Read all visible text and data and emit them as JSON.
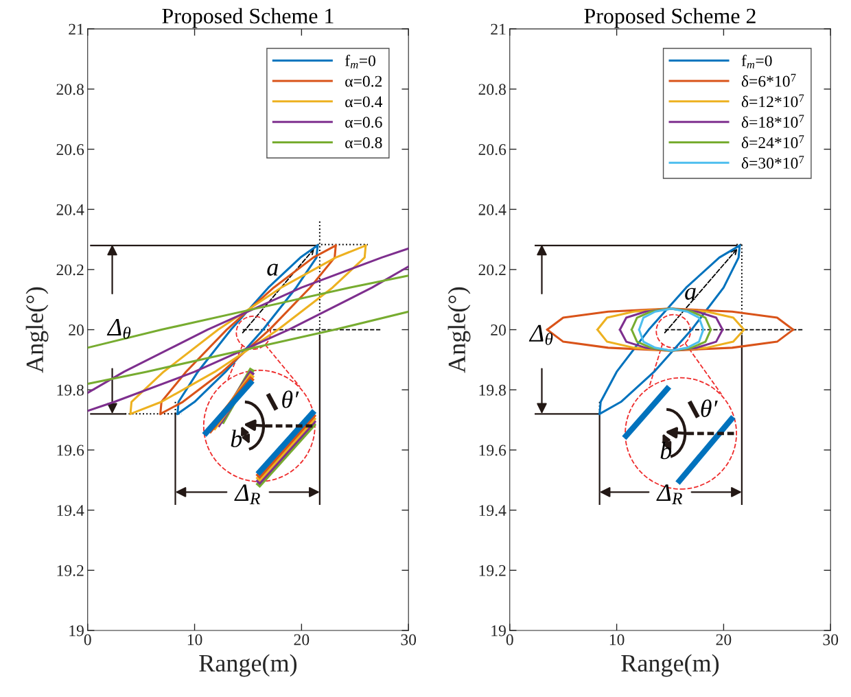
{
  "chart_data": [
    {
      "type": "line",
      "title": "Proposed Scheme 1",
      "xlabel": "Range(m)",
      "ylabel": "Angle(°)",
      "xlim": [
        0,
        30
      ],
      "ylim": [
        19,
        21
      ],
      "xticks": [
        0,
        10,
        20,
        30
      ],
      "yticks": [
        19,
        19.2,
        19.4,
        19.6,
        19.8,
        20,
        20.2,
        20.4,
        20.6,
        20.8,
        21
      ],
      "legend": "top right",
      "series": [
        {
          "name": "f$_{m}$=0",
          "color": "#0072bd",
          "x": [
            8.4,
            8.5,
            10.3,
            13.4,
            16.9,
            19.9,
            21.5,
            null,
            8.4,
            10.0,
            12.9,
            16.4,
            19.5,
            21.4,
            21.5
          ],
          "values": [
            19.72,
            19.76,
            19.86,
            20.0,
            20.14,
            20.24,
            20.28,
            null,
            19.72,
            19.76,
            19.86,
            20.0,
            20.14,
            20.24,
            20.28
          ]
        },
        {
          "name": "α=0.2",
          "color": "#d95319",
          "x": [
            6.8,
            6.9,
            9.2,
            13.0,
            17.4,
            21.1,
            23.2,
            null,
            6.8,
            8.9,
            12.6,
            17.0,
            20.8,
            23.1,
            23.2
          ],
          "values": [
            19.72,
            19.76,
            19.86,
            20.0,
            20.14,
            20.24,
            20.28,
            null,
            19.72,
            19.76,
            19.86,
            20.0,
            20.14,
            20.24,
            20.28
          ]
        },
        {
          "name": "α=0.4",
          "color": "#edb120",
          "x": [
            4.0,
            4.1,
            7.1,
            12.2,
            18.1,
            23.2,
            26.0,
            null,
            4.0,
            6.9,
            11.9,
            17.8,
            22.9,
            25.9,
            26.0
          ],
          "values": [
            19.72,
            19.76,
            19.86,
            20.0,
            20.14,
            20.24,
            20.28,
            null,
            19.72,
            19.76,
            19.86,
            20.0,
            20.14,
            20.24,
            20.28
          ]
        },
        {
          "name": "α=0.6",
          "color": "#7e2f8e",
          "x": [
            0,
            3.4,
            11.2,
            20.0,
            27.5,
            30,
            null,
            0,
            2.5,
            10.0,
            18.8,
            26.6,
            30
          ],
          "values": [
            19.79,
            19.86,
            20.0,
            20.14,
            20.24,
            20.27,
            null,
            19.73,
            19.76,
            19.86,
            20.0,
            20.14,
            20.21
          ]
        },
        {
          "name": "α=0.8",
          "color": "#77ac30",
          "x": [
            0,
            6.9,
            15.7,
            24.5,
            30,
            null,
            0,
            5.5,
            14.3,
            23.1,
            30
          ],
          "values": [
            19.94,
            20.0,
            20.07,
            20.14,
            20.18,
            null,
            19.82,
            19.86,
            19.93,
            20.0,
            20.06
          ]
        }
      ],
      "ref_lines": [
        {
          "axis": "y",
          "value": 20.28,
          "line_style": "solid",
          "color": "#231815"
        },
        {
          "axis": "y",
          "value": 19.72,
          "line_style": "solid",
          "color": "#231815"
        },
        {
          "axis": "y",
          "value": 20,
          "line_style": "dashed",
          "color": "#000000"
        },
        {
          "axis": "x",
          "value": 21.7,
          "line_style": "solid",
          "color": "#231815"
        },
        {
          "axis": "x",
          "value": 8.2,
          "line_style": "solid",
          "color": "#231815"
        }
      ],
      "annotations": [
        "a",
        {
          "text": "Δ$_{θ}$",
          "x": 2.3,
          "y": 20.28
        },
        {
          "text": "Δ$_{R}$",
          "x": 21.7,
          "y": 19.46
        },
        "b",
        {
          "text": "θ′",
          "x": 15.5,
          "y": 20
        }
      ]
    },
    {
      "type": "line",
      "title": "Proposed Scheme 2",
      "xlabel": "Range(m)",
      "ylabel": "Angle(°)",
      "xlim": [
        0,
        30
      ],
      "ylim": [
        19,
        21
      ],
      "xticks": [
        0,
        10,
        20,
        30
      ],
      "yticks": [
        19,
        19.2,
        19.4,
        19.6,
        19.8,
        20,
        20.2,
        20.4,
        20.6,
        20.8,
        21
      ],
      "legend": "top right",
      "series": [
        {
          "name": "f$_{m}$=0",
          "color": "#0072bd",
          "x": [
            8.4,
            8.5,
            10.0,
            13.0,
            16.5,
            19.6,
            21.5,
            null,
            8.4,
            10.4,
            13.5,
            17.0,
            20.0,
            21.4,
            21.5
          ],
          "values": [
            19.72,
            19.76,
            19.86,
            20.0,
            20.14,
            20.24,
            20.28,
            null,
            19.72,
            19.76,
            19.86,
            20.0,
            20.14,
            20.24,
            20.28
          ]
        },
        {
          "name": "δ=6*10$^{7}$",
          "color": "#d95319",
          "x": [
            3.5,
            5.0,
            9.2,
            15.0,
            20.8,
            25.0,
            26.5,
            null,
            3.5,
            5.0,
            9.2,
            15.0,
            20.8,
            25.0,
            26.5
          ],
          "values": [
            20,
            20.04,
            20.06,
            20.07,
            20.06,
            20.04,
            20,
            null,
            20,
            19.96,
            19.94,
            19.93,
            19.94,
            19.96,
            20
          ]
        },
        {
          "name": "δ=12*10$^{7}$",
          "color": "#edb120",
          "x": [
            8.2,
            9.1,
            11.6,
            15.0,
            18.4,
            20.9,
            21.9,
            null,
            8.2,
            9.1,
            11.6,
            15.0,
            18.4,
            20.9,
            21.9
          ],
          "values": [
            20,
            20.04,
            20.06,
            20.07,
            20.06,
            20.04,
            20,
            null,
            20,
            19.96,
            19.94,
            19.93,
            19.94,
            19.96,
            20
          ]
        },
        {
          "name": "δ=18*10$^{7}$",
          "color": "#7e2f8e",
          "x": [
            10.3,
            10.9,
            12.7,
            15.1,
            17.5,
            19.3,
            19.9,
            null,
            10.3,
            10.9,
            12.7,
            15.1,
            17.5,
            19.3,
            19.9
          ],
          "values": [
            20,
            20.04,
            20.06,
            20.07,
            20.06,
            20.04,
            20,
            null,
            20,
            19.96,
            19.94,
            19.93,
            19.94,
            19.96,
            20
          ]
        },
        {
          "name": "δ=24*10$^{7}$",
          "color": "#77ac30",
          "x": [
            11.4,
            11.9,
            13.2,
            15.1,
            17.0,
            18.3,
            18.8,
            null,
            11.4,
            11.9,
            13.2,
            15.1,
            17.0,
            18.3,
            18.8
          ],
          "values": [
            20,
            20.04,
            20.06,
            20.07,
            20.06,
            20.04,
            20,
            null,
            20,
            19.96,
            19.94,
            19.93,
            19.94,
            19.96,
            20
          ]
        },
        {
          "name": "δ=30*10$^{7}$",
          "color": "#4dbeee",
          "x": [
            12.1,
            12.5,
            13.6,
            15.1,
            16.6,
            17.7,
            18.1,
            null,
            12.1,
            12.5,
            13.6,
            15.1,
            16.6,
            17.7,
            18.1
          ],
          "values": [
            20,
            20.04,
            20.06,
            20.07,
            20.06,
            20.04,
            20,
            null,
            20,
            19.96,
            19.94,
            19.93,
            19.94,
            19.96,
            20
          ]
        }
      ],
      "ref_lines": [
        {
          "axis": "y",
          "value": 20.28,
          "line_style": "solid",
          "color": "#231815"
        },
        {
          "axis": "y",
          "value": 19.72,
          "line_style": "solid",
          "color": "#231815"
        },
        {
          "axis": "y",
          "value": 20,
          "line_style": "dashed",
          "color": "#000000"
        },
        {
          "axis": "x",
          "value": 21.7,
          "line_style": "solid",
          "color": "#231815"
        },
        {
          "axis": "x",
          "value": 8.4,
          "line_style": "solid",
          "color": "#231815"
        }
      ],
      "annotations": [
        "a",
        {
          "text": "Δ$_{θ}$",
          "x": 3.0,
          "y": 20.28
        },
        {
          "text": "Δ$_{R}$",
          "x": 21.7,
          "y": 19.46
        },
        "b",
        "θ′"
      ]
    }
  ]
}
